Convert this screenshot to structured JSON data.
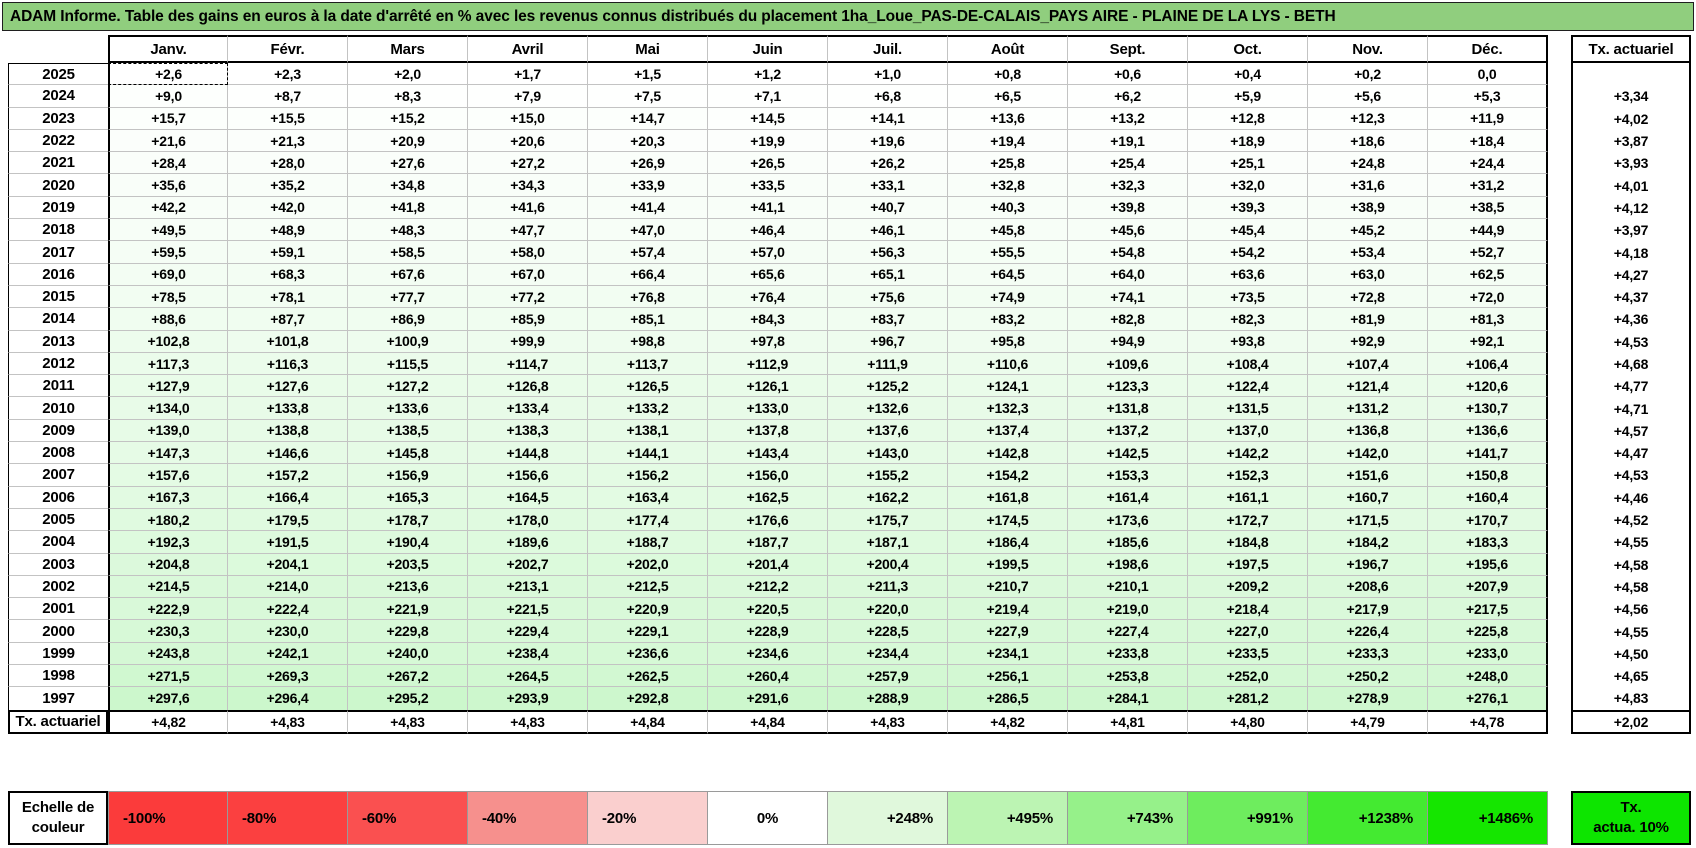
{
  "title": "ADAM Informe. Table des gains en euros à la date d'arrêté en % avec les revenus connus distribués du placement 1ha_Loue_PAS-DE-CALAIS_PAYS AIRE - PLAINE DE LA LYS - BETH",
  "colors": {
    "title_bg": "#90CE7E",
    "grid_line": "#C3C3C3",
    "border": "#000000",
    "cell_green_max": "#00D700",
    "scale_max_percent": 1486
  },
  "table": {
    "months": [
      "Janv.",
      "Févr.",
      "Mars",
      "Avril",
      "Mai",
      "Juin",
      "Juil.",
      "Août",
      "Sept.",
      "Oct.",
      "Nov.",
      "Déc."
    ],
    "tx_header": "Tx. actuariel",
    "selected_cell": {
      "row": 0,
      "col": 0
    },
    "rows": [
      {
        "year": "2025",
        "values": [
          "+2,6",
          "+2,3",
          "+2,0",
          "+1,7",
          "+1,5",
          "+1,2",
          "+1,0",
          "+0,8",
          "+0,6",
          "+0,4",
          "+0,2",
          "0,0"
        ],
        "tx": ""
      },
      {
        "year": "2024",
        "values": [
          "+9,0",
          "+8,7",
          "+8,3",
          "+7,9",
          "+7,5",
          "+7,1",
          "+6,8",
          "+6,5",
          "+6,2",
          "+5,9",
          "+5,6",
          "+5,3"
        ],
        "tx": "+3,34"
      },
      {
        "year": "2023",
        "values": [
          "+15,7",
          "+15,5",
          "+15,2",
          "+15,0",
          "+14,7",
          "+14,5",
          "+14,1",
          "+13,6",
          "+13,2",
          "+12,8",
          "+12,3",
          "+11,9"
        ],
        "tx": "+4,02"
      },
      {
        "year": "2022",
        "values": [
          "+21,6",
          "+21,3",
          "+20,9",
          "+20,6",
          "+20,3",
          "+19,9",
          "+19,6",
          "+19,4",
          "+19,1",
          "+18,9",
          "+18,6",
          "+18,4"
        ],
        "tx": "+3,87"
      },
      {
        "year": "2021",
        "values": [
          "+28,4",
          "+28,0",
          "+27,6",
          "+27,2",
          "+26,9",
          "+26,5",
          "+26,2",
          "+25,8",
          "+25,4",
          "+25,1",
          "+24,8",
          "+24,4"
        ],
        "tx": "+3,93"
      },
      {
        "year": "2020",
        "values": [
          "+35,6",
          "+35,2",
          "+34,8",
          "+34,3",
          "+33,9",
          "+33,5",
          "+33,1",
          "+32,8",
          "+32,3",
          "+32,0",
          "+31,6",
          "+31,2"
        ],
        "tx": "+4,01"
      },
      {
        "year": "2019",
        "values": [
          "+42,2",
          "+42,0",
          "+41,8",
          "+41,6",
          "+41,4",
          "+41,1",
          "+40,7",
          "+40,3",
          "+39,8",
          "+39,3",
          "+38,9",
          "+38,5"
        ],
        "tx": "+4,12"
      },
      {
        "year": "2018",
        "values": [
          "+49,5",
          "+48,9",
          "+48,3",
          "+47,7",
          "+47,0",
          "+46,4",
          "+46,1",
          "+45,8",
          "+45,6",
          "+45,4",
          "+45,2",
          "+44,9"
        ],
        "tx": "+3,97"
      },
      {
        "year": "2017",
        "values": [
          "+59,5",
          "+59,1",
          "+58,5",
          "+58,0",
          "+57,4",
          "+57,0",
          "+56,3",
          "+55,5",
          "+54,8",
          "+54,2",
          "+53,4",
          "+52,7"
        ],
        "tx": "+4,18"
      },
      {
        "year": "2016",
        "values": [
          "+69,0",
          "+68,3",
          "+67,6",
          "+67,0",
          "+66,4",
          "+65,6",
          "+65,1",
          "+64,5",
          "+64,0",
          "+63,6",
          "+63,0",
          "+62,5"
        ],
        "tx": "+4,27"
      },
      {
        "year": "2015",
        "values": [
          "+78,5",
          "+78,1",
          "+77,7",
          "+77,2",
          "+76,8",
          "+76,4",
          "+75,6",
          "+74,9",
          "+74,1",
          "+73,5",
          "+72,8",
          "+72,0"
        ],
        "tx": "+4,37"
      },
      {
        "year": "2014",
        "values": [
          "+88,6",
          "+87,7",
          "+86,9",
          "+85,9",
          "+85,1",
          "+84,3",
          "+83,7",
          "+83,2",
          "+82,8",
          "+82,3",
          "+81,9",
          "+81,3"
        ],
        "tx": "+4,36"
      },
      {
        "year": "2013",
        "values": [
          "+102,8",
          "+101,8",
          "+100,9",
          "+99,9",
          "+98,8",
          "+97,8",
          "+96,7",
          "+95,8",
          "+94,9",
          "+93,8",
          "+92,9",
          "+92,1"
        ],
        "tx": "+4,53"
      },
      {
        "year": "2012",
        "values": [
          "+117,3",
          "+116,3",
          "+115,5",
          "+114,7",
          "+113,7",
          "+112,9",
          "+111,9",
          "+110,6",
          "+109,6",
          "+108,4",
          "+107,4",
          "+106,4"
        ],
        "tx": "+4,68"
      },
      {
        "year": "2011",
        "values": [
          "+127,9",
          "+127,6",
          "+127,2",
          "+126,8",
          "+126,5",
          "+126,1",
          "+125,2",
          "+124,1",
          "+123,3",
          "+122,4",
          "+121,4",
          "+120,6"
        ],
        "tx": "+4,77"
      },
      {
        "year": "2010",
        "values": [
          "+134,0",
          "+133,8",
          "+133,6",
          "+133,4",
          "+133,2",
          "+133,0",
          "+132,6",
          "+132,3",
          "+131,8",
          "+131,5",
          "+131,2",
          "+130,7"
        ],
        "tx": "+4,71"
      },
      {
        "year": "2009",
        "values": [
          "+139,0",
          "+138,8",
          "+138,5",
          "+138,3",
          "+138,1",
          "+137,8",
          "+137,6",
          "+137,4",
          "+137,2",
          "+137,0",
          "+136,8",
          "+136,6"
        ],
        "tx": "+4,57"
      },
      {
        "year": "2008",
        "values": [
          "+147,3",
          "+146,6",
          "+145,8",
          "+144,8",
          "+144,1",
          "+143,4",
          "+143,0",
          "+142,8",
          "+142,5",
          "+142,2",
          "+142,0",
          "+141,7"
        ],
        "tx": "+4,47"
      },
      {
        "year": "2007",
        "values": [
          "+157,6",
          "+157,2",
          "+156,9",
          "+156,6",
          "+156,2",
          "+156,0",
          "+155,2",
          "+154,2",
          "+153,3",
          "+152,3",
          "+151,6",
          "+150,8"
        ],
        "tx": "+4,53"
      },
      {
        "year": "2006",
        "values": [
          "+167,3",
          "+166,4",
          "+165,3",
          "+164,5",
          "+163,4",
          "+162,5",
          "+162,2",
          "+161,8",
          "+161,4",
          "+161,1",
          "+160,7",
          "+160,4"
        ],
        "tx": "+4,46"
      },
      {
        "year": "2005",
        "values": [
          "+180,2",
          "+179,5",
          "+178,7",
          "+178,0",
          "+177,4",
          "+176,6",
          "+175,7",
          "+174,5",
          "+173,6",
          "+172,7",
          "+171,5",
          "+170,7"
        ],
        "tx": "+4,52"
      },
      {
        "year": "2004",
        "values": [
          "+192,3",
          "+191,5",
          "+190,4",
          "+189,6",
          "+188,7",
          "+187,7",
          "+187,1",
          "+186,4",
          "+185,6",
          "+184,8",
          "+184,2",
          "+183,3"
        ],
        "tx": "+4,55"
      },
      {
        "year": "2003",
        "values": [
          "+204,8",
          "+204,1",
          "+203,5",
          "+202,7",
          "+202,0",
          "+201,4",
          "+200,4",
          "+199,5",
          "+198,6",
          "+197,5",
          "+196,7",
          "+195,6"
        ],
        "tx": "+4,58"
      },
      {
        "year": "2002",
        "values": [
          "+214,5",
          "+214,0",
          "+213,6",
          "+213,1",
          "+212,5",
          "+212,2",
          "+211,3",
          "+210,7",
          "+210,1",
          "+209,2",
          "+208,6",
          "+207,9"
        ],
        "tx": "+4,58"
      },
      {
        "year": "2001",
        "values": [
          "+222,9",
          "+222,4",
          "+221,9",
          "+221,5",
          "+220,9",
          "+220,5",
          "+220,0",
          "+219,4",
          "+219,0",
          "+218,4",
          "+217,9",
          "+217,5"
        ],
        "tx": "+4,56"
      },
      {
        "year": "2000",
        "values": [
          "+230,3",
          "+230,0",
          "+229,8",
          "+229,4",
          "+229,1",
          "+228,9",
          "+228,5",
          "+227,9",
          "+227,4",
          "+227,0",
          "+226,4",
          "+225,8"
        ],
        "tx": "+4,55"
      },
      {
        "year": "1999",
        "values": [
          "+243,8",
          "+242,1",
          "+240,0",
          "+238,4",
          "+236,6",
          "+234,6",
          "+234,4",
          "+234,1",
          "+233,8",
          "+233,5",
          "+233,3",
          "+233,0"
        ],
        "tx": "+4,50"
      },
      {
        "year": "1998",
        "values": [
          "+271,5",
          "+269,3",
          "+267,2",
          "+264,5",
          "+262,5",
          "+260,4",
          "+257,9",
          "+256,1",
          "+253,8",
          "+252,0",
          "+250,2",
          "+248,0"
        ],
        "tx": "+4,65"
      },
      {
        "year": "1997",
        "values": [
          "+297,6",
          "+296,4",
          "+295,2",
          "+293,9",
          "+292,8",
          "+291,6",
          "+288,9",
          "+286,5",
          "+284,1",
          "+281,2",
          "+278,9",
          "+276,1"
        ],
        "tx": "+4,83"
      }
    ],
    "footer": {
      "label": "Tx. actuariel",
      "values": [
        "+4,82",
        "+4,83",
        "+4,83",
        "+4,83",
        "+4,84",
        "+4,84",
        "+4,83",
        "+4,82",
        "+4,81",
        "+4,80",
        "+4,79",
        "+4,78"
      ],
      "tx": "+2,02"
    }
  },
  "legend": {
    "label": "Echelle de couleur",
    "cells": [
      {
        "label": "-100%",
        "color": "#FB3B3B",
        "align": "left"
      },
      {
        "label": "-80%",
        "color": "#FB4040",
        "align": "left"
      },
      {
        "label": "-60%",
        "color": "#FA5050",
        "align": "left"
      },
      {
        "label": "-40%",
        "color": "#F6908D",
        "align": "left"
      },
      {
        "label": "-20%",
        "color": "#FACFCE",
        "align": "left"
      },
      {
        "label": "0%",
        "color": "#FFFFFF",
        "align": "center"
      },
      {
        "label": "+248%",
        "color": "#E0F8DC",
        "align": "right"
      },
      {
        "label": "+495%",
        "color": "#BCF4B3",
        "align": "right"
      },
      {
        "label": "+743%",
        "color": "#96F18A",
        "align": "right"
      },
      {
        "label": "+991%",
        "color": "#6EED5E",
        "align": "right"
      },
      {
        "label": "+1238%",
        "color": "#44EA31",
        "align": "right"
      },
      {
        "label": "+1486%",
        "color": "#15E600",
        "align": "right"
      }
    ],
    "tx_cell": {
      "line1": "Tx.",
      "line2": "actua. 10%",
      "color": "#0DE500"
    }
  }
}
